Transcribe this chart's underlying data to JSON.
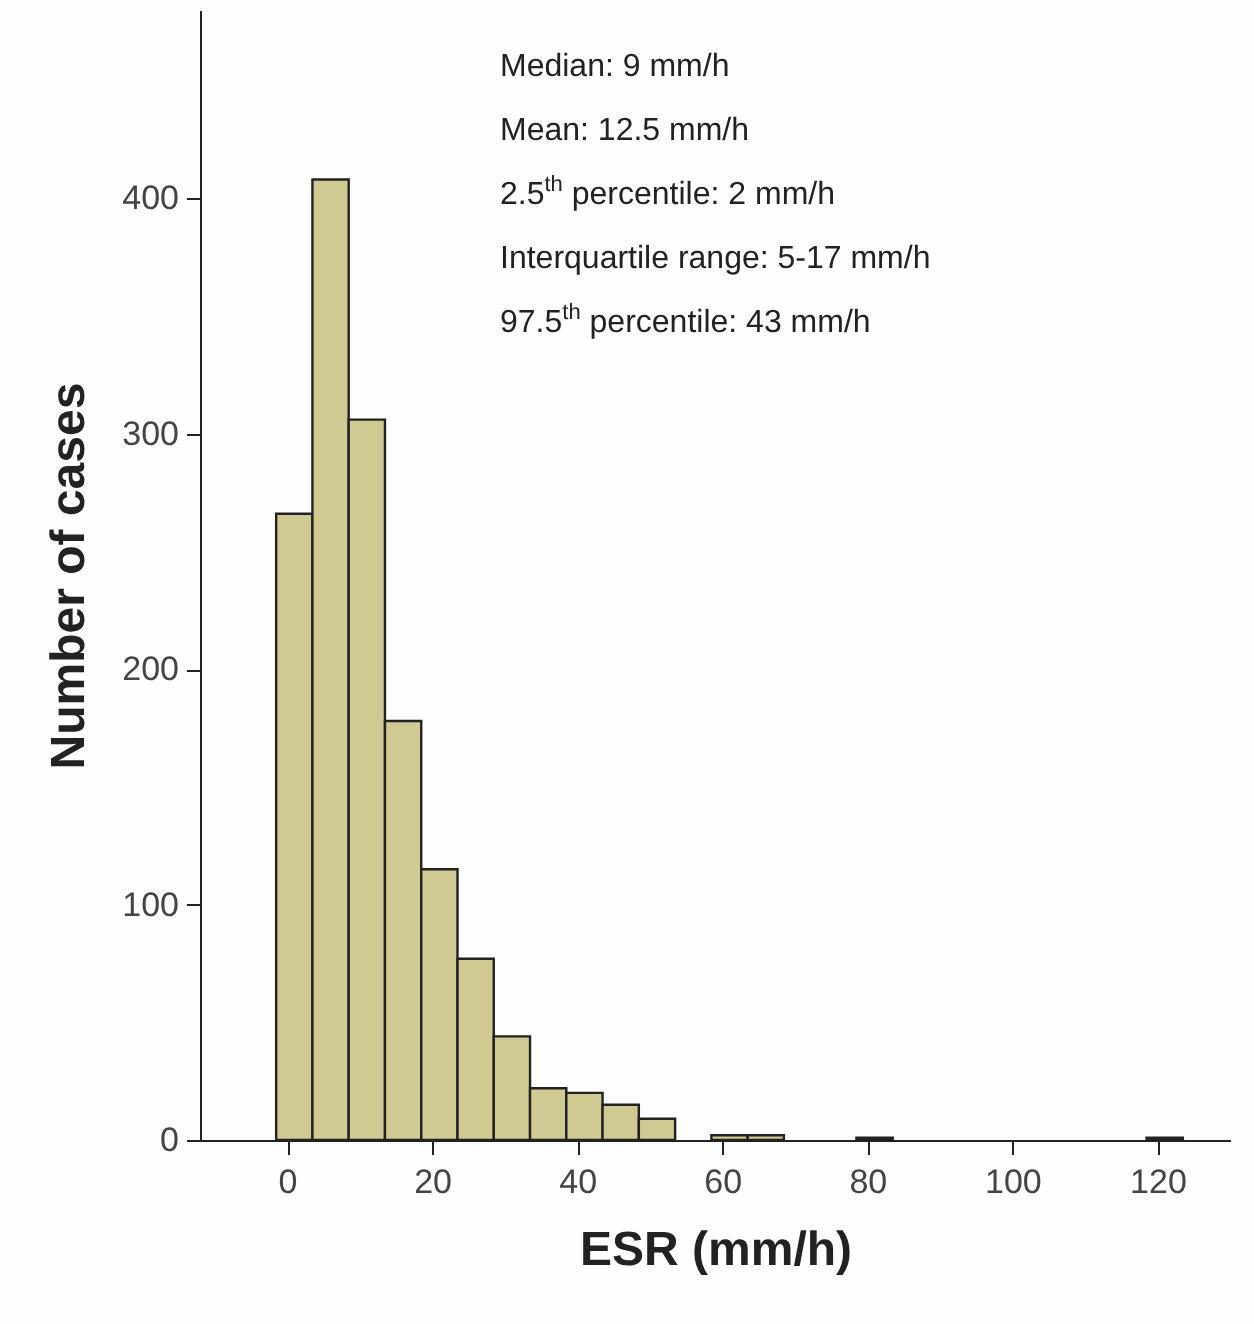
{
  "chart_data": {
    "type": "histogram",
    "xlabel": "ESR (mm/h)",
    "ylabel": "Number of cases",
    "bins": [
      -1.5,
      3.5,
      8.5,
      13.5,
      18.5,
      23.5,
      28.5,
      33.5,
      38.5,
      43.5,
      48.5,
      53.5,
      58.5,
      63.5,
      68.5,
      73.5,
      78.5,
      83.5,
      88.5,
      93.5,
      98.5,
      103.5,
      108.5,
      113.5,
      118.5,
      123.5
    ],
    "values": [
      266,
      408,
      306,
      178,
      115,
      77,
      44,
      22,
      20,
      15,
      9,
      0,
      2,
      2,
      0,
      0,
      1,
      0,
      0,
      0,
      0,
      0,
      0,
      0,
      1
    ],
    "color": "#cfca92",
    "xlim": [
      -12,
      130
    ],
    "xticks": [
      0,
      20,
      40,
      60,
      80,
      100,
      120
    ],
    "ylim": [
      0,
      480
    ],
    "yticks": [
      0,
      100,
      200,
      300,
      400
    ],
    "annotations": [
      "Median:  9 mm/h",
      "Mean: 12.5 mm/h",
      "2.5$^{th}$ percentile: 2 mm/h",
      "Interquartile range: 5-17 mm/h",
      "97.5$^{th}$ percentile: 43 mm/h"
    ]
  }
}
